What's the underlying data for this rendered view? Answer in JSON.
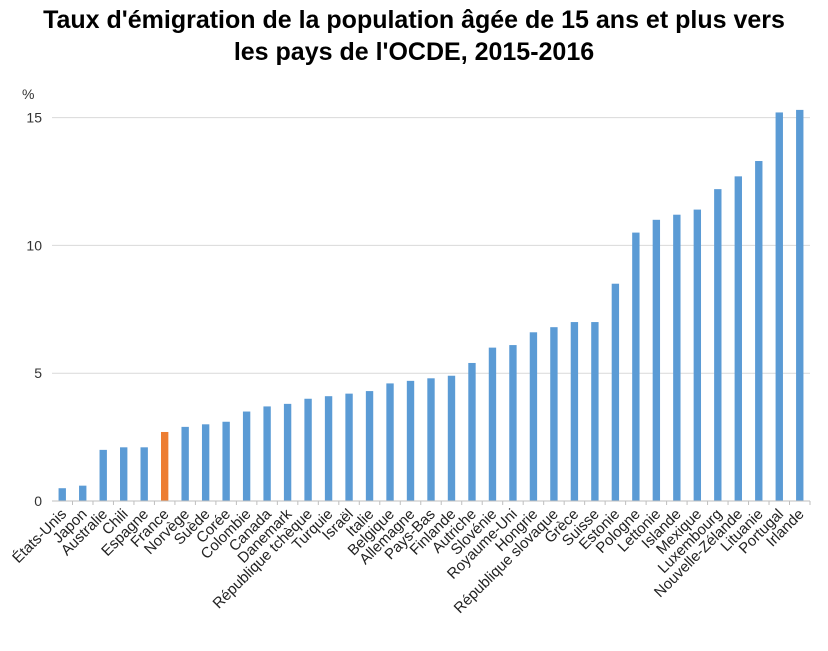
{
  "chart_data": {
    "type": "bar",
    "title_lines": [
      "Taux d'émigration de la population âgée de 15 ans et plus vers",
      "les pays de l'OCDE, 2015-2016"
    ],
    "ylabel": "%",
    "xlabel": "",
    "ylim": [
      0,
      16
    ],
    "yticks": [
      0,
      5,
      10,
      15
    ],
    "grid": true,
    "legend": "none",
    "colors": {
      "default": "#5B9BD5",
      "highlight": "#ED7D31",
      "grid": "#d9d9d9"
    },
    "highlight_category": "France",
    "categories": [
      "États-Unis",
      "Japon",
      "Australie",
      "Chili",
      "Espagne",
      "France",
      "Norvège",
      "Suède",
      "Corée",
      "Colombie",
      "Canada",
      "Danemark",
      "République tchèque",
      "Turquie",
      "Israël",
      "Italie",
      "Belgique",
      "Allemagne",
      "Pays-Bas",
      "Finlande",
      "Autriche",
      "Slovénie",
      "Royaume-Uni",
      "Hongrie",
      "République slovaque",
      "Grèce",
      "Suisse",
      "Estonie",
      "Pologne",
      "Lettonie",
      "Islande",
      "Mexique",
      "Luxembourg",
      "Nouvelle-Zélande",
      "Lituanie",
      "Portugal",
      "Irlande"
    ],
    "values": [
      0.5,
      0.6,
      2.0,
      2.1,
      2.1,
      2.7,
      2.9,
      3.0,
      3.1,
      3.5,
      3.7,
      3.8,
      4.0,
      4.1,
      4.2,
      4.3,
      4.6,
      4.7,
      4.8,
      4.9,
      5.4,
      6.0,
      6.1,
      6.6,
      6.8,
      7.0,
      7.0,
      8.5,
      10.5,
      11.0,
      11.2,
      11.4,
      12.2,
      12.7,
      13.3,
      15.2,
      15.3
    ]
  }
}
